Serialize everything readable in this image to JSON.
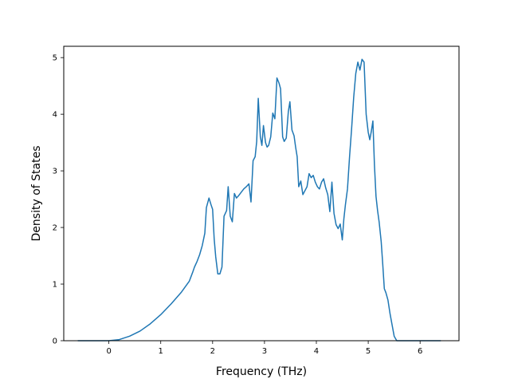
{
  "chart_data": {
    "type": "line",
    "title": "",
    "xlabel": "Frequency (THz)",
    "ylabel": "Density of States",
    "xlim": [
      -0.87,
      6.75
    ],
    "ylim": [
      0,
      5.2
    ],
    "xticks": [
      "0",
      "1",
      "2",
      "3",
      "4",
      "5",
      "6"
    ],
    "yticks": [
      "0",
      "1",
      "2",
      "3",
      "4",
      "5"
    ],
    "grid": false,
    "line_color": "#1f77b4",
    "series": [
      {
        "name": "",
        "x": [
          -0.6,
          0.0,
          0.2,
          0.4,
          0.6,
          0.8,
          1.0,
          1.2,
          1.4,
          1.55,
          1.62,
          1.65,
          1.7,
          1.75,
          1.8,
          1.85,
          1.88,
          1.93,
          1.97,
          2.0,
          2.03,
          2.06,
          2.1,
          2.14,
          2.18,
          2.22,
          2.27,
          2.3,
          2.34,
          2.38,
          2.42,
          2.46,
          2.5,
          2.55,
          2.6,
          2.65,
          2.7,
          2.74,
          2.78,
          2.82,
          2.85,
          2.88,
          2.92,
          2.95,
          2.98,
          3.02,
          3.05,
          3.08,
          3.12,
          3.16,
          3.2,
          3.24,
          3.28,
          3.31,
          3.35,
          3.38,
          3.42,
          3.46,
          3.49,
          3.53,
          3.57,
          3.6,
          3.63,
          3.66,
          3.7,
          3.74,
          3.78,
          3.82,
          3.86,
          3.9,
          3.94,
          3.98,
          4.02,
          4.06,
          4.1,
          4.14,
          4.18,
          4.22,
          4.26,
          4.3,
          4.34,
          4.38,
          4.42,
          4.46,
          4.5,
          4.53,
          4.56,
          4.6,
          4.64,
          4.68,
          4.72,
          4.76,
          4.8,
          4.84,
          4.88,
          4.92,
          4.96,
          5.0,
          5.03,
          5.06,
          5.09,
          5.12,
          5.15,
          5.18,
          5.21,
          5.25,
          5.28,
          5.31,
          5.34,
          5.38,
          5.42,
          5.46,
          5.5,
          5.55,
          5.6,
          5.65,
          5.7,
          5.75,
          5.8,
          5.85,
          5.9,
          6.0,
          6.4
        ],
        "y": [
          0,
          0,
          0.02,
          0.08,
          0.17,
          0.3,
          0.46,
          0.65,
          0.86,
          1.05,
          1.22,
          1.3,
          1.4,
          1.52,
          1.68,
          1.9,
          2.35,
          2.52,
          2.4,
          2.32,
          1.8,
          1.48,
          1.18,
          1.18,
          1.3,
          2.2,
          2.3,
          2.72,
          2.2,
          2.1,
          2.6,
          2.52,
          2.56,
          2.62,
          2.68,
          2.72,
          2.77,
          2.45,
          3.18,
          3.25,
          3.52,
          4.28,
          3.6,
          3.45,
          3.8,
          3.5,
          3.42,
          3.45,
          3.6,
          4.02,
          3.92,
          4.64,
          4.55,
          4.45,
          3.6,
          3.52,
          3.58,
          4.05,
          4.22,
          3.72,
          3.62,
          3.42,
          3.25,
          2.72,
          2.82,
          2.58,
          2.65,
          2.72,
          2.95,
          2.88,
          2.92,
          2.8,
          2.72,
          2.68,
          2.8,
          2.86,
          2.7,
          2.58,
          2.28,
          2.8,
          2.25,
          2.05,
          1.98,
          2.06,
          1.78,
          2.15,
          2.4,
          2.68,
          3.25,
          3.75,
          4.3,
          4.72,
          4.92,
          4.78,
          4.97,
          4.92,
          4.0,
          3.68,
          3.55,
          3.7,
          3.88,
          3.1,
          2.55,
          2.3,
          2.1,
          1.75,
          1.35,
          0.92,
          0.85,
          0.72,
          0.48,
          0.28,
          0.08,
          0,
          0,
          0,
          0,
          0,
          0,
          0,
          0,
          0,
          0
        ]
      }
    ]
  }
}
